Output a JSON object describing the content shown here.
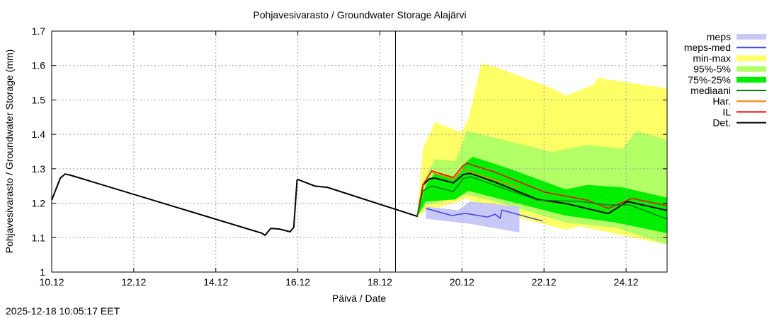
{
  "chart_data": {
    "type": "line",
    "title": "Pohjavesivarasto / Groundwater Storage   Alajärvi",
    "xlabel": "Päivä / Date",
    "ylabel": "Pohjavesivarasto / Groundwater Storage (mm)",
    "ylim": [
      1.0,
      1.7
    ],
    "xlim_days_from_10_12": [
      0,
      15
    ],
    "now_marker_day": 8.38,
    "yticks": [
      "1",
      "1.1",
      "1.2",
      "1.3",
      "1.4",
      "1.5",
      "1.6",
      "1.7"
    ],
    "xticks": [
      {
        "d": 0,
        "label": "10.12"
      },
      {
        "d": 2,
        "label": "12.12"
      },
      {
        "d": 4,
        "label": "14.12"
      },
      {
        "d": 6,
        "label": "16.12"
      },
      {
        "d": 8,
        "label": "18.12"
      },
      {
        "d": 10,
        "label": "20.12"
      },
      {
        "d": 12,
        "label": "22.12"
      },
      {
        "d": 14,
        "label": "24.12"
      }
    ],
    "bands": [
      {
        "name": "min-max",
        "color": "#ffff66",
        "upper": [
          [
            8.91,
            1.162
          ],
          [
            9.05,
            1.36
          ],
          [
            9.34,
            1.435
          ],
          [
            9.79,
            1.415
          ],
          [
            9.97,
            1.405
          ],
          [
            10.15,
            1.44
          ],
          [
            10.47,
            1.606
          ],
          [
            10.81,
            1.596
          ],
          [
            12.19,
            1.534
          ],
          [
            12.53,
            1.513
          ],
          [
            12.88,
            1.528
          ],
          [
            13.22,
            1.545
          ],
          [
            13.31,
            1.565
          ],
          [
            13.57,
            1.559
          ],
          [
            15,
            1.534
          ]
        ],
        "lower": [
          [
            8.91,
            1.162
          ],
          [
            9.05,
            1.175
          ],
          [
            9.91,
            1.205
          ],
          [
            10.1,
            1.215
          ],
          [
            10.81,
            1.175
          ],
          [
            12.53,
            1.123
          ],
          [
            12.88,
            1.133
          ],
          [
            15,
            1.08
          ]
        ]
      },
      {
        "name": "95%-5%",
        "color": "#b3ff66",
        "upper": [
          [
            8.91,
            1.162
          ],
          [
            9.12,
            1.277
          ],
          [
            9.34,
            1.328
          ],
          [
            9.84,
            1.322
          ],
          [
            10.12,
            1.41
          ],
          [
            10.81,
            1.39
          ],
          [
            12.19,
            1.349
          ],
          [
            13.05,
            1.369
          ],
          [
            13.91,
            1.359
          ],
          [
            14.26,
            1.41
          ],
          [
            15,
            1.384
          ]
        ],
        "lower": [
          [
            8.91,
            1.162
          ],
          [
            9.12,
            1.195
          ],
          [
            9.84,
            1.215
          ],
          [
            10.12,
            1.225
          ],
          [
            10.81,
            1.205
          ],
          [
            12.53,
            1.144
          ],
          [
            13.74,
            1.129
          ],
          [
            15,
            1.08
          ]
        ]
      },
      {
        "name": "75%-25%",
        "color": "#00ee00",
        "upper": [
          [
            8.91,
            1.162
          ],
          [
            9.12,
            1.253
          ],
          [
            9.34,
            1.288
          ],
          [
            9.84,
            1.273
          ],
          [
            10.09,
            1.318
          ],
          [
            10.26,
            1.335
          ],
          [
            11.21,
            1.298
          ],
          [
            12.53,
            1.24
          ],
          [
            13.05,
            1.253
          ],
          [
            13.91,
            1.246
          ],
          [
            15,
            1.216
          ]
        ],
        "lower": [
          [
            8.91,
            1.162
          ],
          [
            9.12,
            1.205
          ],
          [
            9.84,
            1.211
          ],
          [
            10.15,
            1.236
          ],
          [
            10.81,
            1.216
          ],
          [
            12.53,
            1.164
          ],
          [
            13.74,
            1.144
          ],
          [
            15,
            1.113
          ]
        ]
      },
      {
        "name": "meps",
        "color": "#c8c8f8",
        "upper": [
          [
            9.12,
            1.19
          ],
          [
            9.9,
            1.18
          ],
          [
            10.2,
            1.205
          ],
          [
            11.4,
            1.19
          ]
        ],
        "lower": [
          [
            9.12,
            1.155
          ],
          [
            10.2,
            1.14
          ],
          [
            11.4,
            1.115
          ]
        ]
      }
    ],
    "series": [
      {
        "name": "Det.",
        "color": "#000000",
        "points": [
          [
            0,
            1.209
          ],
          [
            0.21,
            1.273
          ],
          [
            0.33,
            1.285
          ],
          [
            0.47,
            1.281
          ],
          [
            5.12,
            1.113
          ],
          [
            5.2,
            1.107
          ],
          [
            5.34,
            1.127
          ],
          [
            5.55,
            1.125
          ],
          [
            5.81,
            1.117
          ],
          [
            5.9,
            1.13
          ],
          [
            5.98,
            1.267
          ],
          [
            6.0,
            1.269
          ],
          [
            6.41,
            1.25
          ],
          [
            6.72,
            1.246
          ],
          [
            8.91,
            1.162
          ],
          [
            9.05,
            1.253
          ],
          [
            9.21,
            1.271
          ],
          [
            9.34,
            1.273
          ],
          [
            9.79,
            1.259
          ],
          [
            10.03,
            1.283
          ],
          [
            10.2,
            1.287
          ],
          [
            10.81,
            1.261
          ],
          [
            11.84,
            1.211
          ],
          [
            12.53,
            1.199
          ],
          [
            13.57,
            1.17
          ],
          [
            14.03,
            1.205
          ],
          [
            15,
            1.179
          ]
        ]
      },
      {
        "name": "Har.",
        "color": "#ff8000",
        "points": [
          [
            8.91,
            1.162
          ],
          [
            9.05,
            1.255
          ],
          [
            9.25,
            1.29
          ],
          [
            9.79,
            1.27
          ],
          [
            10.03,
            1.3
          ],
          [
            10.2,
            1.29
          ],
          [
            11.4,
            1.245
          ]
        ]
      },
      {
        "name": "IL",
        "color": "#ff0000",
        "points": [
          [
            8.91,
            1.162
          ],
          [
            9.05,
            1.253
          ],
          [
            9.26,
            1.294
          ],
          [
            9.79,
            1.275
          ],
          [
            10.03,
            1.31
          ],
          [
            10.12,
            1.316
          ],
          [
            10.81,
            1.29
          ],
          [
            12.02,
            1.232
          ],
          [
            13.05,
            1.209
          ],
          [
            13.57,
            1.185
          ],
          [
            14.14,
            1.214
          ],
          [
            15,
            1.193
          ]
        ]
      },
      {
        "name": "mediaani",
        "color": "#008000",
        "points": [
          [
            8.91,
            1.162
          ],
          [
            9.05,
            1.236
          ],
          [
            9.26,
            1.25
          ],
          [
            9.79,
            1.234
          ],
          [
            10.03,
            1.271
          ],
          [
            10.2,
            1.277
          ],
          [
            11.84,
            1.209
          ],
          [
            12.88,
            1.205
          ],
          [
            13.57,
            1.195
          ],
          [
            14.09,
            1.195
          ],
          [
            15,
            1.154
          ]
        ]
      },
      {
        "name": "meps-med",
        "color": "#4444dd",
        "points": [
          [
            9.12,
            1.185
          ],
          [
            9.76,
            1.164
          ],
          [
            9.93,
            1.168
          ],
          [
            10.1,
            1.17
          ],
          [
            10.62,
            1.16
          ],
          [
            10.81,
            1.168
          ],
          [
            10.93,
            1.156
          ],
          [
            10.97,
            1.18
          ],
          [
            11.97,
            1.148
          ]
        ]
      }
    ],
    "legend": {
      "placement": "right",
      "entries": [
        {
          "label": "meps",
          "color": "#c8c8f8",
          "kind": "band"
        },
        {
          "label": "meps-med",
          "color": "#4444dd",
          "kind": "line"
        },
        {
          "label": "min-max",
          "color": "#ffff66",
          "kind": "band"
        },
        {
          "label": "95%-5%",
          "color": "#b3ff66",
          "kind": "band"
        },
        {
          "label": "75%-25%",
          "color": "#00ee00",
          "kind": "band"
        },
        {
          "label": "mediaani",
          "color": "#008000",
          "kind": "line"
        },
        {
          "label": "Har.",
          "color": "#ff8000",
          "kind": "line"
        },
        {
          "label": "IL",
          "color": "#ff0000",
          "kind": "line"
        },
        {
          "label": "Det.",
          "color": "#000000",
          "kind": "line"
        }
      ]
    }
  },
  "timestamp": "2025-12-18 10:05:17 EET"
}
